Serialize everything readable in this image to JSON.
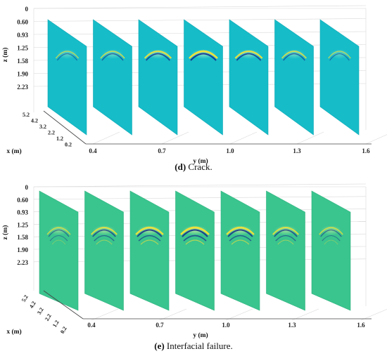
{
  "panels": [
    {
      "id": "d",
      "caption_label": "(d)",
      "caption_text": " Crack.",
      "plate_color": "#16bcc8",
      "plate_color_dark": "#10a9b6",
      "z_axis_label": "z (m)",
      "y_axis_label": "y (m)",
      "x_axis_label": "x (m)",
      "z_ticks": [
        "0",
        "0.60",
        "0.93",
        "1.25",
        "1.58",
        "1.90",
        "2.23"
      ],
      "y_ticks": [
        "0.4",
        "0.7",
        "1.0",
        "1.3",
        "1.6"
      ],
      "x_ticks": [
        "5.2",
        "4.2",
        "3.2",
        "2.2",
        "1.2",
        "0.2"
      ],
      "slice_anomaly_strength": [
        0.35,
        0.5,
        0.8,
        1.0,
        0.85,
        0.55,
        0.3
      ]
    },
    {
      "id": "e",
      "caption_label": "(e)",
      "caption_text": " Interfacial failure.",
      "plate_color": "#3ac48e",
      "plate_color_dark": "#30b27f",
      "z_axis_label": "z (m)",
      "y_axis_label": "y (m)",
      "x_axis_label": "x (m)",
      "z_ticks": [
        "0",
        "0.60",
        "0.93",
        "1.25",
        "1.58",
        "1.90",
        "2.23"
      ],
      "y_ticks": [
        "0.4",
        "0.7",
        "1.0",
        "1.3",
        "1.6"
      ],
      "x_ticks": [
        "5.2",
        "4.2",
        "3.2",
        "2.2",
        "1.2",
        "0.2"
      ],
      "slice_anomaly_strength": [
        0.4,
        0.7,
        0.9,
        1.0,
        0.9,
        0.7,
        0.45
      ]
    }
  ]
}
